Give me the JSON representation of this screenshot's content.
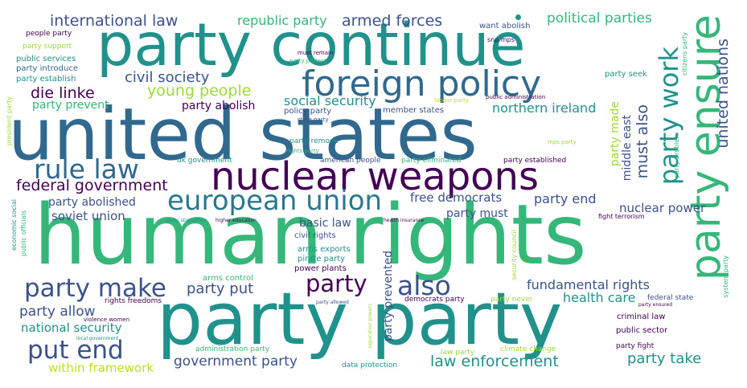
{
  "background": "#ffffff",
  "palette": {
    "purple": "#440154",
    "indigo": "#3b528b",
    "blue": "#31688e",
    "teal": "#21918c",
    "green": "#35b779",
    "lime": "#a0da39",
    "yellow": "#bddf26"
  },
  "words": [
    {
      "text": "human rights",
      "color": "#35b779"
    },
    {
      "text": "united states",
      "color": "#31688e"
    },
    {
      "text": "party party",
      "color": "#21918c"
    },
    {
      "text": "party continue",
      "color": "#21918c"
    },
    {
      "text": "nuclear weapons",
      "color": "#440154"
    },
    {
      "text": "foreign policy",
      "color": "#31688e"
    },
    {
      "text": "party ensure",
      "color": "#35b779"
    },
    {
      "text": "european union",
      "color": "#2a788e"
    },
    {
      "text": "party work",
      "color": "#21918c"
    },
    {
      "text": "rule law",
      "color": "#31688e"
    },
    {
      "text": "party make",
      "color": "#3b528b"
    },
    {
      "text": "put end",
      "color": "#3b528b"
    },
    {
      "text": "party",
      "color": "#440154"
    },
    {
      "text": "also",
      "color": "#3b528b"
    },
    {
      "text": "federal government",
      "color": "#440154"
    },
    {
      "text": "international law",
      "color": "#3b528b"
    },
    {
      "text": "armed forces",
      "color": "#3b528b"
    },
    {
      "text": "republic party",
      "color": "#35b779"
    },
    {
      "text": "political parties",
      "color": "#35b779"
    },
    {
      "text": "civil society",
      "color": "#3b528b"
    },
    {
      "text": "young people",
      "color": "#a0da39"
    },
    {
      "text": "die linke",
      "color": "#440154"
    },
    {
      "text": "social security",
      "color": "#21918c"
    },
    {
      "text": "party prevent",
      "color": "#35b779"
    },
    {
      "text": "party abolish",
      "color": "#440154"
    },
    {
      "text": "northern ireland",
      "color": "#21918c"
    },
    {
      "text": "must also",
      "color": "#3b528b"
    },
    {
      "text": "middle east",
      "color": "#3b528b"
    },
    {
      "text": "party made",
      "color": "#a0da39"
    },
    {
      "text": "united nations",
      "color": "#3b528b"
    },
    {
      "text": "party abolished",
      "color": "#3b528b"
    },
    {
      "text": "soviet union",
      "color": "#3b528b"
    },
    {
      "text": "free democrats",
      "color": "#3b528b"
    },
    {
      "text": "party end",
      "color": "#3b528b"
    },
    {
      "text": "nuclear power",
      "color": "#3b528b"
    },
    {
      "text": "party must",
      "color": "#3b528b"
    },
    {
      "text": "basic law",
      "color": "#3b528b"
    },
    {
      "text": "fundamental rights",
      "color": "#3b528b"
    },
    {
      "text": "party put",
      "color": "#3b528b"
    },
    {
      "text": "party allow",
      "color": "#3b528b"
    },
    {
      "text": "national security",
      "color": "#21918c"
    },
    {
      "text": "health care",
      "color": "#21918c"
    },
    {
      "text": "law enforcement",
      "color": "#21918c"
    },
    {
      "text": "party take",
      "color": "#21918c"
    },
    {
      "text": "government party",
      "color": "#3b528b"
    },
    {
      "text": "within framework",
      "color": "#bddf26"
    },
    {
      "text": "party prevented",
      "color": "#3b528b"
    },
    {
      "text": "party seek",
      "color": "#21918c"
    },
    {
      "text": "citizens party",
      "color": "#35b779"
    },
    {
      "text": "party problem",
      "color": "#35b779"
    },
    {
      "text": "people party",
      "color": "#440154"
    },
    {
      "text": "party support",
      "color": "#a0da39"
    },
    {
      "text": "public services",
      "color": "#21918c"
    },
    {
      "text": "party introduce",
      "color": "#31688e"
    },
    {
      "text": "party establish",
      "color": "#21918c"
    },
    {
      "text": "must remain",
      "color": "#440154"
    },
    {
      "text": "party protect",
      "color": "#35b779"
    },
    {
      "text": "want abolish",
      "color": "#3b528b"
    },
    {
      "text": "snp mps",
      "color": "#440154"
    },
    {
      "text": "policy party",
      "color": "#3b528b"
    },
    {
      "text": "member states",
      "color": "#3b528b"
    },
    {
      "text": "labour party",
      "color": "#bddf26"
    },
    {
      "text": "public administration",
      "color": "#440154"
    },
    {
      "text": "state party",
      "color": "#3b528b"
    },
    {
      "text": "party remove",
      "color": "#21918c"
    },
    {
      "text": "rights party",
      "color": "#35b779"
    },
    {
      "text": "mps party",
      "color": "#a0da39"
    },
    {
      "text": "uk government",
      "color": "#21918c"
    },
    {
      "text": "american people",
      "color": "#3b528b"
    },
    {
      "text": "party eliminated",
      "color": "#35b779"
    },
    {
      "text": "party established",
      "color": "#440154"
    },
    {
      "text": "president party",
      "color": "#a0da39"
    },
    {
      "text": "economic social",
      "color": "#21918c"
    },
    {
      "text": "public officials",
      "color": "#35b779"
    },
    {
      "text": "party strengthen",
      "color": "#21918c"
    },
    {
      "text": "higher education",
      "color": "#440154"
    },
    {
      "text": "health insurance",
      "color": "#440154"
    },
    {
      "text": "fight terrorism",
      "color": "#440154"
    },
    {
      "text": "civil rights",
      "color": "#3b528b"
    },
    {
      "text": "arms exports",
      "color": "#21918c"
    },
    {
      "text": "pirate party",
      "color": "#21918c"
    },
    {
      "text": "power plants",
      "color": "#440154"
    },
    {
      "text": "security council",
      "color": "#a0da39"
    },
    {
      "text": "arms control",
      "color": "#35b779"
    },
    {
      "text": "rights freedoms",
      "color": "#440154"
    },
    {
      "text": "violence women",
      "color": "#440154"
    },
    {
      "text": "local government",
      "color": "#21918c"
    },
    {
      "text": "party allowed",
      "color": "#3b528b"
    },
    {
      "text": "separation powers",
      "color": "#a0da39"
    },
    {
      "text": "democrats party",
      "color": "#440154"
    },
    {
      "text": "party never",
      "color": "#a0da39"
    },
    {
      "text": "federal state",
      "color": "#3b528b"
    },
    {
      "text": "party ensured",
      "color": "#440154"
    },
    {
      "text": "criminal law",
      "color": "#440154"
    },
    {
      "text": "public sector",
      "color": "#440154"
    },
    {
      "text": "party fight",
      "color": "#440154"
    },
    {
      "text": "system party",
      "color": "#35b779"
    },
    {
      "text": "administration party",
      "color": "#35b779"
    },
    {
      "text": "law party",
      "color": "#a0da39"
    },
    {
      "text": "climate change",
      "color": "#a0da39"
    },
    {
      "text": "data protection",
      "color": "#21918c"
    }
  ]
}
